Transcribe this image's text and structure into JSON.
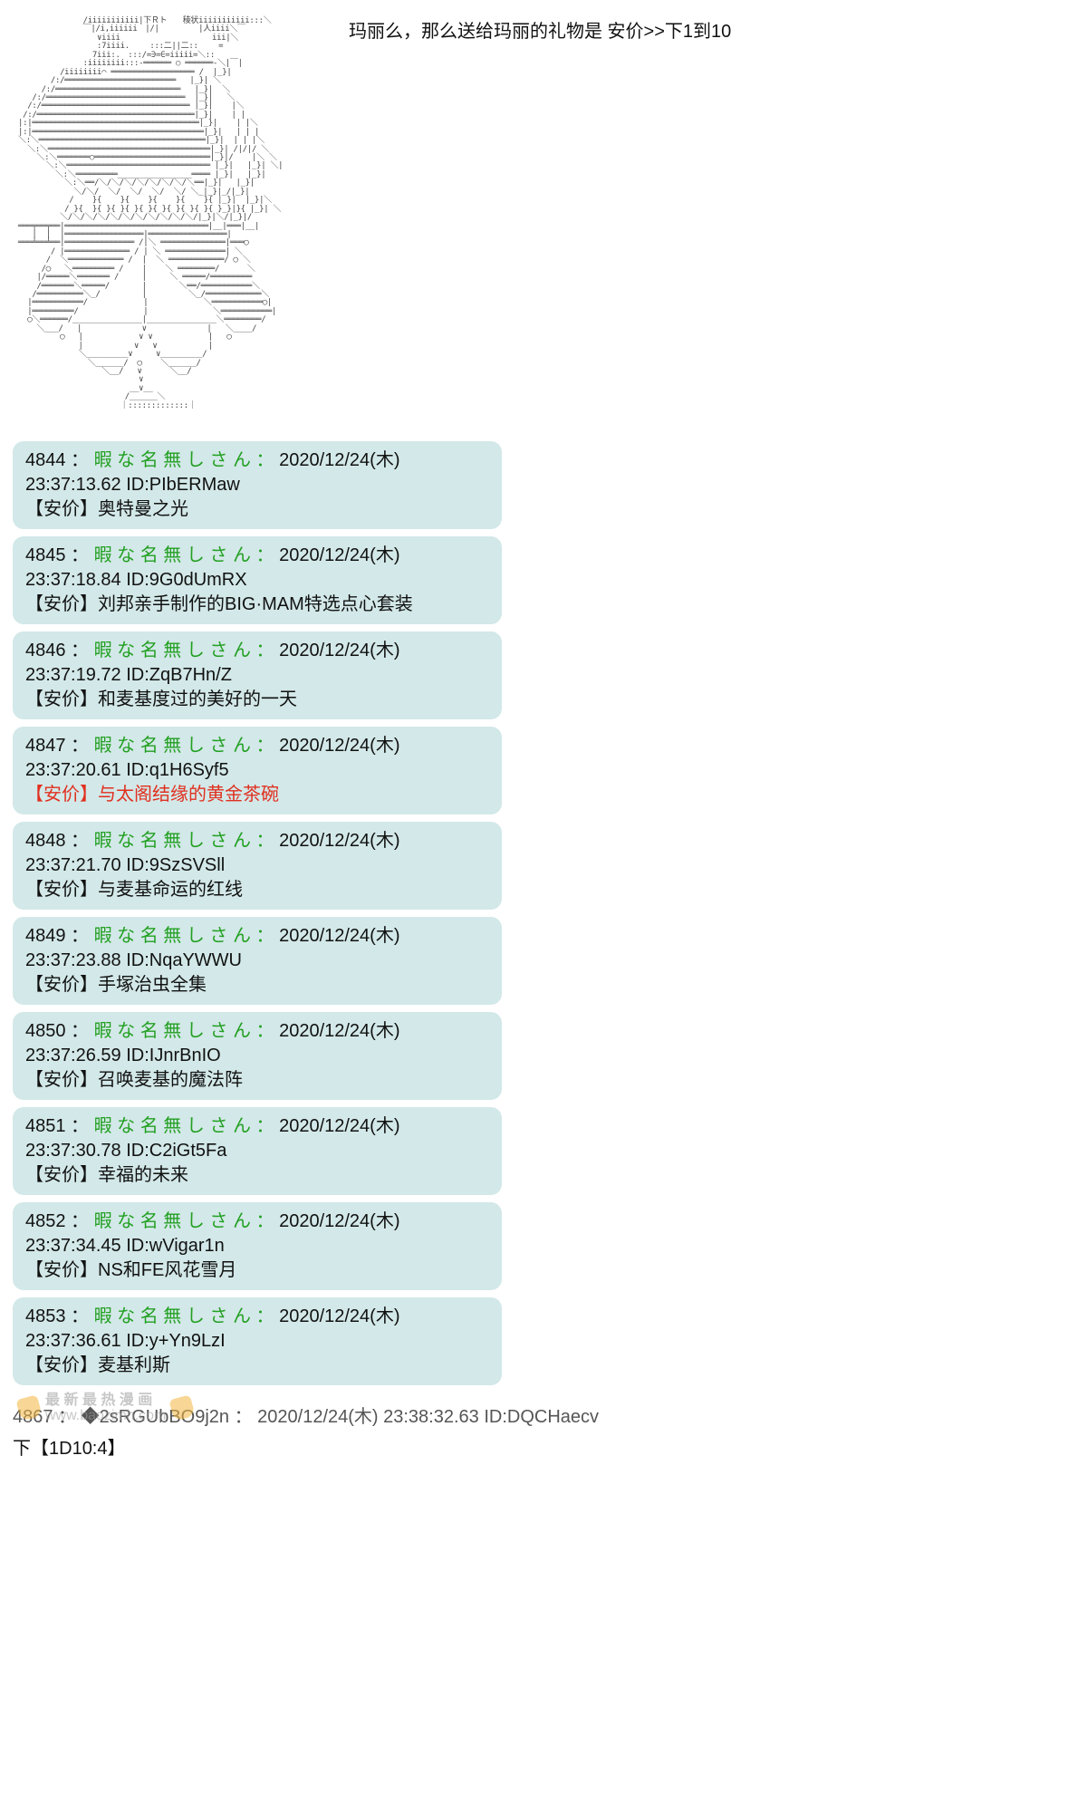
{
  "top_text": "玛丽么，那么送给玛丽的礼物是 安价>>下1到10",
  "posts": [
    {
      "num": "4844",
      "name": "暇 な 名 無 し さ ん",
      "ts": "2020/12/24(木) 23:37:13.62",
      "uid": "PIbERMaw",
      "body": "【安价】奥特曼之光",
      "red": false
    },
    {
      "num": "4845",
      "name": "暇 な 名 無 し さ ん",
      "ts": "2020/12/24(木) 23:37:18.84",
      "uid": "9G0dUmRX",
      "body": "【安价】刘邦亲手制作的BIG·MAM特选点心套装",
      "red": false
    },
    {
      "num": "4846",
      "name": "暇 な 名 無 し さ ん",
      "ts": "2020/12/24(木) 23:37:19.72",
      "uid": "ZqB7Hn/Z",
      "body": "【安价】和麦基度过的美好的一天",
      "red": false
    },
    {
      "num": "4847",
      "name": "暇 な 名 無 し さ ん",
      "ts": "2020/12/24(木) 23:37:20.61",
      "uid": "q1H6Syf5",
      "body": "【安价】与太阁结缘的黄金茶碗",
      "red": true
    },
    {
      "num": "4848",
      "name": "暇 な 名 無 し さ ん",
      "ts": "2020/12/24(木) 23:37:21.70",
      "uid": "9SzSVSll",
      "body": "【安价】与麦基命运的红线",
      "red": false
    },
    {
      "num": "4849",
      "name": "暇 な 名 無 し さ ん",
      "ts": "2020/12/24(木) 23:37:23.88",
      "uid": "NqaYWWU",
      "body": "【安价】手塚治虫全集",
      "red": false
    },
    {
      "num": "4850",
      "name": "暇 な 名 無 し さ ん",
      "ts": "2020/12/24(木) 23:37:26.59",
      "uid": "IJnrBnIO",
      "body": "【安价】召唤麦基的魔法阵",
      "red": false
    },
    {
      "num": "4851",
      "name": "暇 な 名 無 し さ ん",
      "ts": "2020/12/24(木) 23:37:30.78",
      "uid": "C2iGt5Fa",
      "body": "【安价】幸福的未来",
      "red": false
    },
    {
      "num": "4852",
      "name": "暇 な 名 無 し さ ん",
      "ts": "2020/12/24(木) 23:37:34.45",
      "uid": "wVigar1n",
      "body": "【安价】NS和FE风花雪月",
      "red": false
    },
    {
      "num": "4853",
      "name": "暇 な 名 無 し さ ん",
      "ts": "2020/12/24(木) 23:37:36.61",
      "uid": "y+Yn9LzI",
      "body": "【安价】麦基利斯",
      "red": false
    }
  ],
  "footer_meta_num": "4867",
  "footer_meta_uid_fragment": "2sRGUbBO9j2n",
  "footer_meta_ts": "2020/12/24(木) 23:38:32.63",
  "footer_meta_id": "DQCHaecv",
  "footer_result": "下【1D10:4】",
  "watermark": {
    "line1": "最 新 最 热 漫 画",
    "line2": "www.baozimh.com"
  },
  "colors": {
    "post_bg": "#d3e8e8",
    "name_green": "#22a022",
    "body_red": "#e03020",
    "page_bg": "#ffffff",
    "text": "#111111",
    "meta_grey": "#555555",
    "ascii_color": "#444444"
  },
  "ascii_art_caption": "samurai-figure-ascii-art"
}
